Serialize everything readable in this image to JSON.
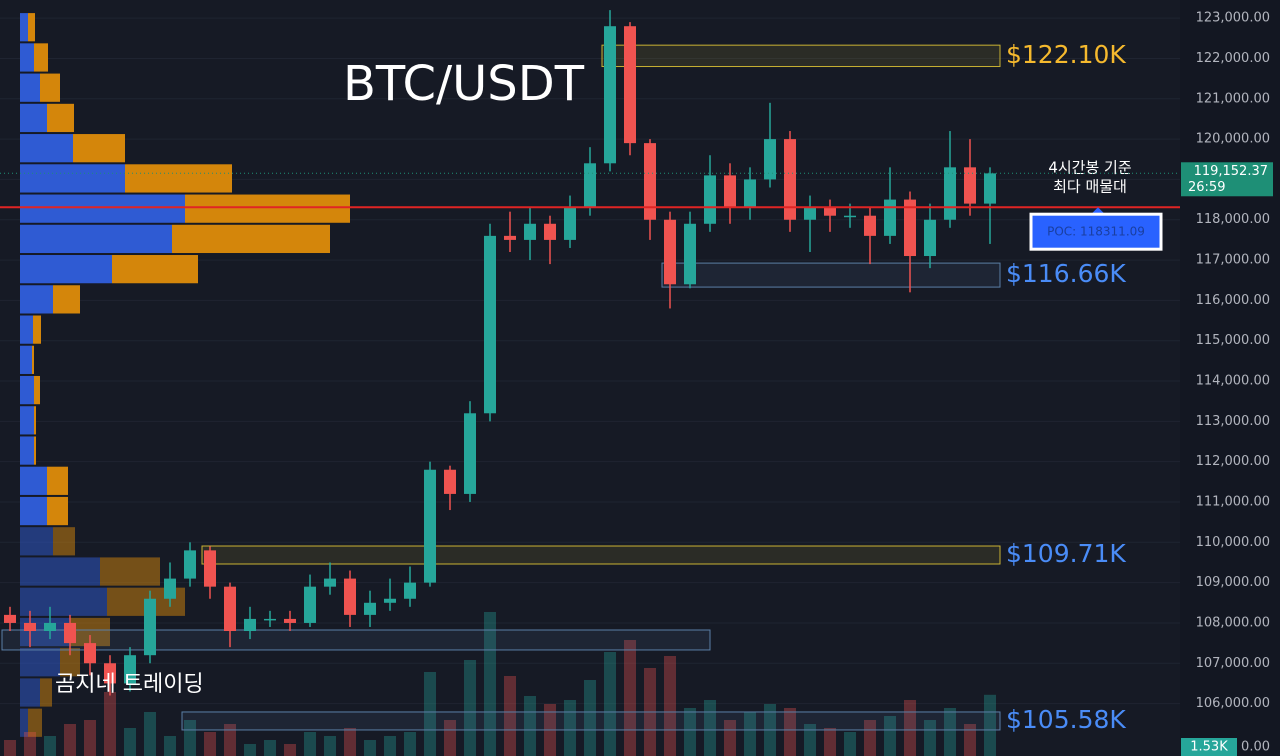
{
  "chart_data": {
    "type": "candlestick",
    "title": "BTC/USDT",
    "watermark": "곰지네 트레이딩",
    "ylim": [
      104700,
      123450
    ],
    "yticks": [
      {
        "value": 106000,
        "label": "106,000.00"
      },
      {
        "value": 107000,
        "label": "107,000.00"
      },
      {
        "value": 108000,
        "label": "108,000.00"
      },
      {
        "value": 109000,
        "label": "109,000.00"
      },
      {
        "value": 110000,
        "label": "110,000.00"
      },
      {
        "value": 111000,
        "label": "111,000.00"
      },
      {
        "value": 112000,
        "label": "112,000.00"
      },
      {
        "value": 113000,
        "label": "113,000.00"
      },
      {
        "value": 114000,
        "label": "114,000.00"
      },
      {
        "value": 115000,
        "label": "115,000.00"
      },
      {
        "value": 116000,
        "label": "116,000.00"
      },
      {
        "value": 117000,
        "label": "117,000.00"
      },
      {
        "value": 118000,
        "label": "118,000.00"
      },
      {
        "value": 119000,
        "label": "119,000.00"
      },
      {
        "value": 120000,
        "label": "120,000.00"
      },
      {
        "value": 121000,
        "label": "121,000.00"
      },
      {
        "value": 122000,
        "label": "122,000.00"
      },
      {
        "value": 123000,
        "label": "123,000.00"
      }
    ],
    "grid": true,
    "up_color": "#26a69a",
    "down_color": "#ef5350",
    "open": [
      108200,
      108000,
      107800,
      108000,
      107500,
      107000,
      106500,
      107200,
      108600,
      109100,
      109800,
      108900,
      107800,
      108100,
      108100,
      108000,
      108900,
      109100,
      108200,
      108500,
      108600,
      109000,
      111800,
      111200,
      113200,
      117600,
      117500,
      117900,
      117500,
      118300,
      119400,
      122800,
      119900,
      118000,
      116400,
      117900,
      119100,
      118300,
      119000,
      120000,
      118000,
      118300,
      118100,
      118100,
      117600,
      118500,
      117100,
      118000,
      119300,
      118400
    ],
    "high": [
      108400,
      108300,
      108400,
      108200,
      107700,
      107200,
      107400,
      108800,
      109500,
      110000,
      109900,
      109000,
      108400,
      108300,
      108300,
      109200,
      109500,
      109300,
      108800,
      109100,
      109400,
      112000,
      111900,
      113500,
      117900,
      118200,
      118300,
      118100,
      118600,
      119800,
      123200,
      122900,
      120000,
      118200,
      118200,
      119600,
      119400,
      119300,
      120900,
      120200,
      118600,
      118500,
      118400,
      118300,
      119300,
      118700,
      118400,
      120200,
      120000,
      119300
    ],
    "low": [
      107800,
      107400,
      107600,
      107200,
      106700,
      106200,
      106300,
      107000,
      108400,
      108900,
      108600,
      107400,
      107600,
      107900,
      107800,
      107900,
      108700,
      107900,
      107900,
      108300,
      108400,
      108900,
      110800,
      111000,
      113000,
      117200,
      117000,
      116900,
      117300,
      118100,
      119200,
      119600,
      117500,
      115800,
      116300,
      117700,
      117900,
      118000,
      118800,
      117700,
      117200,
      117700,
      117800,
      116900,
      117400,
      116200,
      116800,
      117800,
      118100,
      117400
    ],
    "close": [
      108000,
      107800,
      108000,
      107500,
      107000,
      106500,
      107200,
      108600,
      109100,
      109800,
      108900,
      107800,
      108100,
      108100,
      108000,
      108900,
      109100,
      108200,
      108500,
      108600,
      109000,
      111800,
      111200,
      113200,
      117600,
      117500,
      117900,
      117500,
      118300,
      119400,
      122800,
      119900,
      118000,
      116400,
      117900,
      119100,
      118300,
      119000,
      120000,
      118000,
      118300,
      118100,
      118100,
      117600,
      118500,
      117100,
      118000,
      119300,
      118400,
      119150
    ],
    "volume": {
      "values": [
        0.4,
        0.6,
        0.5,
        0.8,
        0.9,
        1.6,
        0.7,
        1.1,
        0.5,
        0.9,
        0.6,
        0.8,
        0.3,
        0.4,
        0.3,
        0.6,
        0.5,
        0.7,
        0.4,
        0.5,
        0.6,
        2.1,
        0.9,
        2.4,
        3.6,
        2.0,
        1.5,
        1.3,
        1.4,
        1.9,
        2.6,
        2.9,
        2.2,
        2.5,
        1.2,
        1.4,
        0.9,
        1.1,
        1.3,
        1.2,
        0.8,
        0.7,
        0.6,
        0.9,
        1.0,
        1.4,
        0.9,
        1.2,
        0.8,
        1.53
      ],
      "ylim": [
        0,
        5
      ],
      "last_label": "1.53K",
      "zero_label": "0.00"
    },
    "last_price": {
      "value": 119152.37,
      "label": "119,152.37",
      "countdown": "26:59",
      "color": "#1e8f76"
    },
    "poc": {
      "value": 118311.09,
      "label": "POC: 118311.09",
      "note": [
        "4시간봉 기준",
        "최다 매물대"
      ],
      "color": "#e02424"
    },
    "zones": [
      {
        "value": 122100,
        "label": "$122.10K",
        "top": 122330,
        "bottom": 121800,
        "from": 30,
        "color": "#c9b233",
        "label_color": "#f5b92e"
      },
      {
        "value": 116660,
        "label": "$116.66K",
        "top": 116925,
        "bottom": 116330,
        "from": 33,
        "color": "#5b7fa6",
        "label_color": "#4a8cf7"
      },
      {
        "value": 109710,
        "label": "$109.71K",
        "top": 109908,
        "bottom": 109462,
        "from": 10,
        "color": "#c9b233",
        "label_color": "#4a8cf7"
      },
      {
        "top": 107825,
        "bottom": 107330,
        "from": 0,
        "to": 35,
        "color": "#5b7fa6"
      },
      {
        "value": 105580,
        "label": "$105.58K",
        "top": 105792,
        "bottom": 105346,
        "from": 9,
        "color": "#5b7fa6",
        "label_color": "#4a8cf7"
      }
    ],
    "profile": {
      "bins": [
        123150,
        122400,
        121650,
        120900,
        120150,
        119400,
        118650,
        117900,
        117150,
        116400,
        115650,
        114900,
        114150,
        113400,
        112650,
        111900,
        111150,
        110400,
        109650,
        108900,
        108150,
        107400,
        106650,
        105900,
        105150
      ],
      "buy": [
        8,
        14,
        20,
        27,
        53,
        105,
        165,
        152,
        92,
        33,
        13,
        12,
        14,
        14,
        14,
        27,
        27,
        33,
        80,
        87,
        50,
        40,
        20,
        8
      ],
      "sell": [
        7,
        14,
        20,
        27,
        52,
        107,
        165,
        158,
        86,
        27,
        8,
        2,
        6,
        2,
        2,
        21,
        21,
        22,
        60,
        78,
        40,
        20,
        12,
        14
      ],
      "buy_color": "#2f5bd3",
      "sell_color": "#d4860b"
    }
  }
}
